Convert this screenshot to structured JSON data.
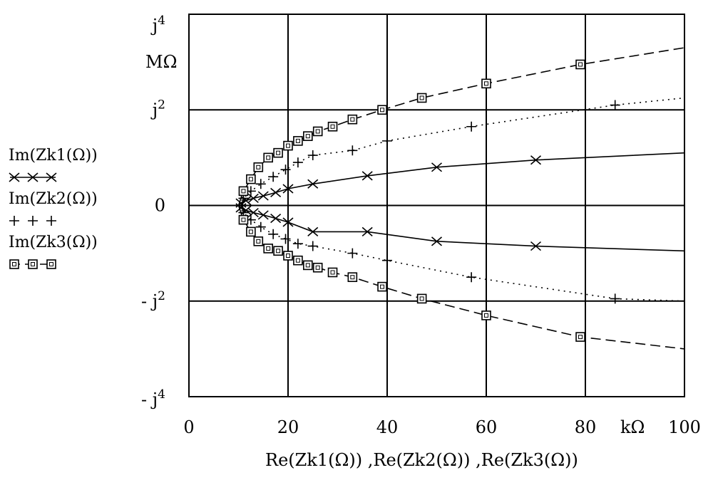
{
  "chart_data": {
    "type": "line",
    "title": "",
    "xlabel": "Re(Zk1(Ω)) ,Re(Zk2(Ω)) ,Re(Zk3(Ω))",
    "ylabel": "",
    "x_unit": "kΩ",
    "y_unit": "MΩ",
    "xlim": [
      0,
      100
    ],
    "ylim": [
      -4,
      4
    ],
    "grid": true,
    "x_ticks": [
      {
        "value": 0,
        "label": "0"
      },
      {
        "value": 20,
        "label": "20"
      },
      {
        "value": 40,
        "label": "40"
      },
      {
        "value": 60,
        "label": "60"
      },
      {
        "value": 80,
        "label": "80"
      },
      {
        "value": 100,
        "label": "100"
      }
    ],
    "y_ticks": [
      {
        "value": 4,
        "prefix": "",
        "base": "j",
        "sup": "4"
      },
      {
        "value": 2,
        "prefix": "",
        "base": "j",
        "sup": "2"
      },
      {
        "value": 0,
        "prefix": "",
        "base": "0",
        "sup": ""
      },
      {
        "value": -2,
        "prefix": "- ",
        "base": "j",
        "sup": "2"
      },
      {
        "value": -4,
        "prefix": "- ",
        "base": "j",
        "sup": "4"
      }
    ],
    "legend_position": "left",
    "series": [
      {
        "name": "Im(Zk1(Ω))",
        "marker": "x",
        "line": "solid",
        "x": [
          10,
          10.5,
          11.5,
          13,
          15,
          17.5,
          20,
          25,
          36,
          50,
          70,
          100
        ],
        "y": [
          0,
          0.05,
          0.1,
          0.15,
          0.2,
          0.27,
          0.35,
          0.45,
          0.62,
          0.8,
          0.95,
          1.1
        ],
        "y_lower": [
          0,
          -0.05,
          -0.1,
          -0.15,
          -0.2,
          -0.27,
          -0.35,
          -0.55,
          -0.55,
          -0.75,
          -0.85,
          -0.95
        ]
      },
      {
        "name": "Im(Zk2(Ω))",
        "marker": "+",
        "line": "dotted",
        "x": [
          10,
          11,
          12.5,
          14.5,
          17,
          19.5,
          22,
          25,
          33,
          40,
          57,
          86,
          100
        ],
        "y": [
          0,
          0.15,
          0.3,
          0.45,
          0.6,
          0.75,
          0.9,
          1.05,
          1.15,
          1.35,
          1.65,
          2.1,
          2.25
        ],
        "y_lower": [
          0,
          -0.15,
          -0.3,
          -0.45,
          -0.6,
          -0.7,
          -0.8,
          -0.85,
          -1.0,
          -1.15,
          -1.5,
          -1.95,
          -2.0
        ]
      },
      {
        "name": "Im(Zk3(Ω))",
        "marker": "square",
        "line": "dashed",
        "x": [
          10,
          11,
          12.5,
          14,
          16,
          18,
          20,
          22,
          24,
          26,
          29,
          33,
          39,
          47,
          60,
          79,
          100
        ],
        "y": [
          0,
          0.3,
          0.55,
          0.8,
          1.0,
          1.1,
          1.25,
          1.35,
          1.45,
          1.55,
          1.65,
          1.8,
          2.0,
          2.25,
          2.55,
          2.95,
          3.3
        ],
        "y_lower": [
          0,
          -0.3,
          -0.55,
          -0.75,
          -0.9,
          -0.95,
          -1.05,
          -1.15,
          -1.25,
          -1.3,
          -1.4,
          -1.5,
          -1.7,
          -1.95,
          -2.3,
          -2.75,
          -3.0
        ]
      }
    ]
  }
}
